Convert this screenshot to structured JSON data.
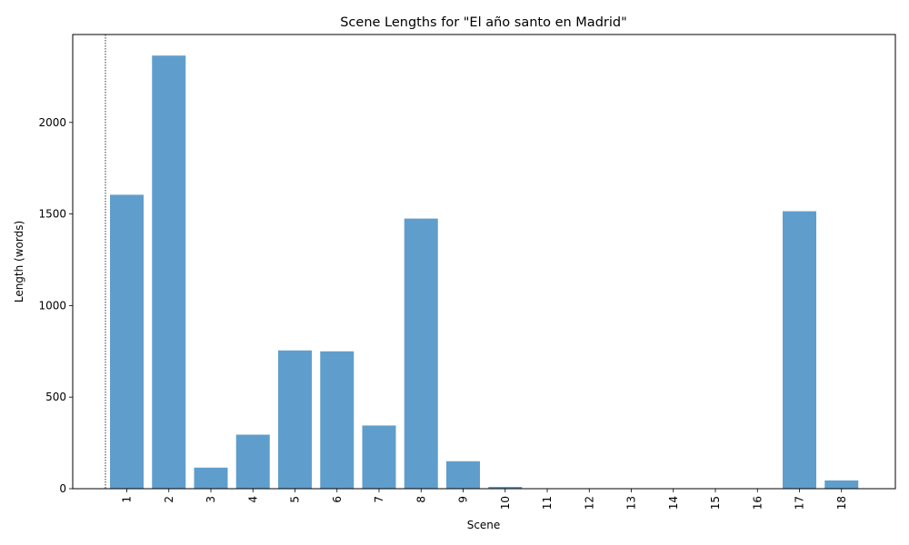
{
  "chart_data": {
    "type": "bar",
    "title": "Scene Lengths for \"El año santo en Madrid\"",
    "xlabel": "Scene",
    "ylabel": "Length (words)",
    "categories": [
      "1",
      "2",
      "3",
      "4",
      "5",
      "6",
      "7",
      "8",
      "9",
      "10",
      "11",
      "12",
      "13",
      "14",
      "15",
      "16",
      "17",
      "18"
    ],
    "values": [
      1605,
      2365,
      115,
      295,
      755,
      750,
      345,
      1475,
      150,
      10,
      0,
      0,
      0,
      0,
      0,
      0,
      1515,
      45
    ],
    "ylim": [
      0,
      2480
    ],
    "yticks": [
      0,
      500,
      1000,
      1500,
      2000
    ],
    "xtick_rotation": 90,
    "grid": false,
    "bar_color": "#5f9ecc",
    "annotation": "dotted vertical line before scene 1"
  }
}
